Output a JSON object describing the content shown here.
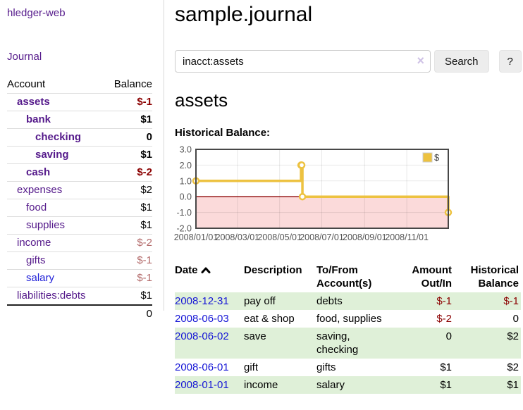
{
  "sidebar": {
    "app_title": "hledger-web",
    "journal_link": "Journal",
    "accounts_table": {
      "headers": {
        "account": "Account",
        "balance": "Balance"
      },
      "rows": [
        {
          "name": "assets",
          "balance": "$-1",
          "indent": 1,
          "bold": true,
          "link_color": "purple"
        },
        {
          "name": "bank",
          "balance": "$1",
          "indent": 2,
          "bold": true,
          "link_color": "purple"
        },
        {
          "name": "checking",
          "balance": "0",
          "indent": 3,
          "bold": true,
          "link_color": "purple"
        },
        {
          "name": "saving",
          "balance": "$1",
          "indent": 3,
          "bold": true,
          "link_color": "purple"
        },
        {
          "name": "cash",
          "balance": "$-2",
          "indent": 2,
          "bold": true,
          "link_color": "purple"
        },
        {
          "name": "expenses",
          "balance": "$2",
          "indent": 1,
          "bold": false,
          "link_color": "purple"
        },
        {
          "name": "food",
          "balance": "$1",
          "indent": 2,
          "bold": false,
          "link_color": "purple"
        },
        {
          "name": "supplies",
          "balance": "$1",
          "indent": 2,
          "bold": false,
          "link_color": "purple"
        },
        {
          "name": "income",
          "balance": "$-2",
          "indent": 1,
          "bold": false,
          "link_color": "purple"
        },
        {
          "name": "gifts",
          "balance": "$-1",
          "indent": 2,
          "bold": false,
          "link_color": "purple"
        },
        {
          "name": "salary",
          "balance": "$-1",
          "indent": 2,
          "bold": false,
          "link_color": "blue"
        },
        {
          "name": "liabilities:debts",
          "balance": "$1",
          "indent": 1,
          "bold": false,
          "link_color": "purple"
        }
      ],
      "total": "0"
    }
  },
  "header": {
    "title": "sample.journal"
  },
  "search": {
    "query": "inacct:assets",
    "clear_icon": "×",
    "search_label": "Search",
    "help_label": "?"
  },
  "main": {
    "account_heading": "assets",
    "chart_label": "Historical Balance:"
  },
  "chart_data": {
    "type": "line",
    "title": "Historical Balance:",
    "step": true,
    "x_range": [
      "2008-01-01",
      "2008-12-31"
    ],
    "ylim": [
      -2,
      3
    ],
    "x_ticks": [
      "2008/01/01",
      "2008/03/01",
      "2008/05/01",
      "2008/07/01",
      "2008/09/01",
      "2008/11/01"
    ],
    "y_ticks": [
      "3.0",
      "2.0",
      "1.0",
      "0.0",
      "-1.0",
      "-2.0"
    ],
    "grid": true,
    "legend_position": "top-right",
    "series": [
      {
        "name": "$",
        "color": "#edc240",
        "points": [
          {
            "x": "2008-01-01",
            "y": 1
          },
          {
            "x": "2008-06-01",
            "y": 2
          },
          {
            "x": "2008-06-02",
            "y": 2
          },
          {
            "x": "2008-06-03",
            "y": 0
          },
          {
            "x": "2008-12-31",
            "y": -1
          }
        ]
      }
    ],
    "negative_region_color": "#fbdada",
    "zero_line_color": "#8b0000",
    "border_color": "#474747",
    "tick_text_color": "#545454"
  },
  "register": {
    "headers": [
      {
        "label": "Date"
      },
      {
        "label": "Description"
      },
      {
        "label": "To/From Account(s)"
      },
      {
        "label": "Amount Out/In"
      },
      {
        "label": "Historical Balance"
      }
    ],
    "rows": [
      {
        "date": "2008-12-31",
        "description": "pay off",
        "accounts": "debts",
        "amount": "$-1",
        "balance": "$-1"
      },
      {
        "date": "2008-06-03",
        "description": "eat & shop",
        "accounts": "food, supplies",
        "amount": "$-2",
        "balance": "0"
      },
      {
        "date": "2008-06-02",
        "description": "save",
        "accounts": "saving, checking",
        "amount": "0",
        "balance": "$2"
      },
      {
        "date": "2008-06-01",
        "description": "gift",
        "accounts": "gifts",
        "amount": "$1",
        "balance": "$2"
      },
      {
        "date": "2008-01-01",
        "description": "income",
        "accounts": "salary",
        "amount": "$1",
        "balance": "$1"
      }
    ]
  },
  "colors": {
    "link_purple": "#551a8b",
    "link_blue": "#1616d6",
    "negative_strong": "#8b0000",
    "negative_muted": "#b36a6a",
    "row_green": "#dff0d8",
    "chart_series": "#edc240"
  }
}
